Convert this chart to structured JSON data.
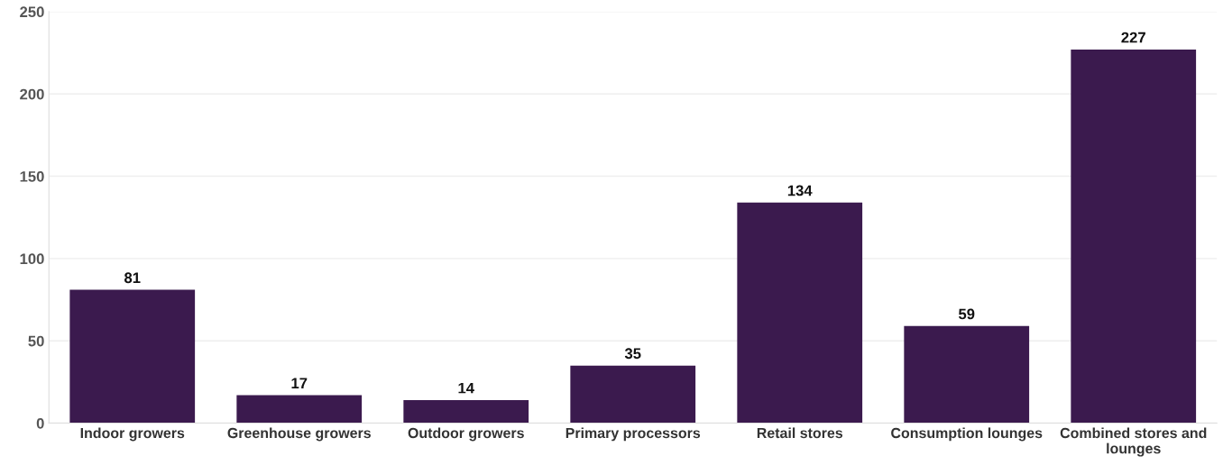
{
  "chart_data": {
    "type": "bar",
    "categories": [
      "Indoor growers",
      "Greenhouse growers",
      "Outdoor growers",
      "Primary processors",
      "Retail stores",
      "Consumption lounges",
      "Combined stores and lounges"
    ],
    "values": [
      81,
      17,
      14,
      35,
      134,
      59,
      227
    ],
    "color": "#3b1a4e",
    "ylim": [
      0,
      250
    ],
    "yticks": [
      0,
      50,
      100,
      150,
      200,
      250
    ],
    "grid": "y",
    "data_labels": true,
    "legend": false
  }
}
